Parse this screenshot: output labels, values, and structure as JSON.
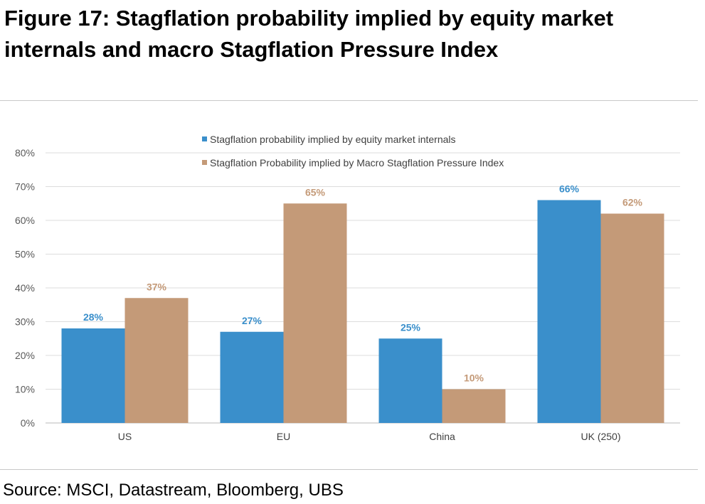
{
  "title": "Figure 17: Stagflation probability implied by equity market internals and macro Stagflation Pressure Index",
  "source": "Source: MSCI, Datastream, Bloomberg, UBS",
  "chart_data": {
    "type": "bar",
    "categories": [
      "US",
      "EU",
      "China",
      "UK (250)"
    ],
    "series": [
      {
        "name": "Stagflation probability implied by equity market internals",
        "values": [
          28,
          27,
          25,
          66
        ],
        "labels": [
          "28%",
          "27%",
          "25%",
          "66%"
        ],
        "color": "#3a8fcb"
      },
      {
        "name": "Stagflation Probability implied by Macro Stagflation Pressure Index",
        "values": [
          37,
          65,
          10,
          62
        ],
        "labels": [
          "37%",
          "65%",
          "10%",
          "62%"
        ],
        "color": "#c49a78"
      }
    ],
    "ylim": [
      0,
      80
    ],
    "yticks": [
      "0%",
      "10%",
      "20%",
      "30%",
      "40%",
      "50%",
      "60%",
      "70%",
      "80%"
    ],
    "grid": true,
    "legend_position": "top-center",
    "xlabel": "",
    "ylabel": ""
  }
}
